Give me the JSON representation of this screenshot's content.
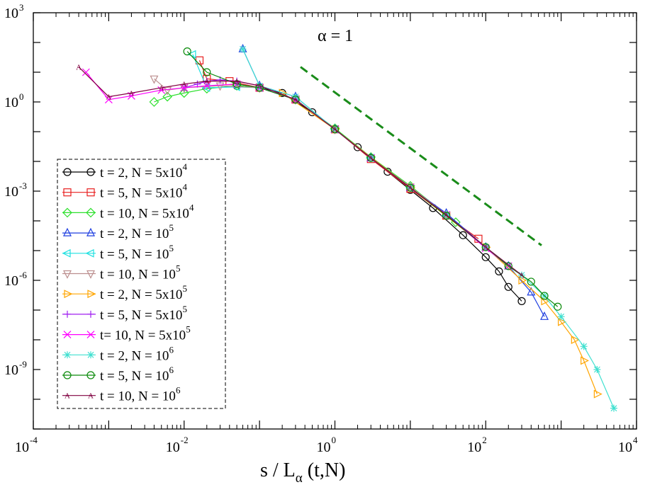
{
  "chart_data": {
    "type": "scatter",
    "scale": "log-log",
    "xlabel": "s / L_α (t,N)",
    "xlabel_main": "s / L",
    "xlabel_sub": "α",
    "xlabel_tail": " (t,N)",
    "ylabel": "",
    "annotation": "α = 1",
    "xlim": [
      0.0001,
      10000
    ],
    "ylim": [
      1e-11,
      1000
    ],
    "x_ticks": [
      {
        "base": "10",
        "exp": "-4",
        "value": 0.0001
      },
      {
        "base": "10",
        "exp": "-2",
        "value": 0.01
      },
      {
        "base": "10",
        "exp": "0",
        "value": 1
      },
      {
        "base": "10",
        "exp": "2",
        "value": 100
      },
      {
        "base": "10",
        "exp": "4",
        "value": 10000
      }
    ],
    "y_ticks": [
      {
        "base": "10",
        "exp": "3",
        "value": 1000
      },
      {
        "base": "10",
        "exp": "0",
        "value": 1
      },
      {
        "base": "10",
        "exp": "-3",
        "value": 0.001
      },
      {
        "base": "10",
        "exp": "-6",
        "value": 1e-06
      },
      {
        "base": "10",
        "exp": "-9",
        "value": 1e-09
      }
    ],
    "reference_line": {
      "label": "power-law guide",
      "color": "#1a8c1a",
      "x": [
        0.35,
        550
      ],
      "y": [
        15,
        1.5e-05
      ]
    },
    "legend_position": "lower-left",
    "series": [
      {
        "name": "t = 2,  N = 5x10^4",
        "text": "t = 2,  N = 5x10",
        "sup": "4",
        "color": "#000000",
        "marker": "circle",
        "x": [
          0.05,
          0.1,
          0.2,
          0.5,
          1,
          2,
          5,
          10,
          20,
          50,
          100,
          150,
          200,
          300
        ],
        "y": [
          3.5,
          3,
          2,
          0.45,
          0.12,
          0.03,
          0.0045,
          0.0011,
          0.00027,
          3.3e-05,
          6e-06,
          2e-06,
          6e-07,
          2e-07
        ]
      },
      {
        "name": "t = 5,  N = 5x10^4",
        "text": "t = 5,  N = 5x10",
        "sup": "4",
        "color": "#e81f1f",
        "marker": "square",
        "x": [
          0.016,
          0.02,
          0.04,
          0.1,
          0.3,
          1,
          3,
          10,
          30,
          80
        ],
        "y": [
          25,
          6,
          5,
          3,
          1.2,
          0.12,
          0.012,
          0.0012,
          0.00015,
          2.5e-05
        ]
      },
      {
        "name": "t = 10, N = 5x10^4",
        "text": "t = 10, N = 5x10",
        "sup": "4",
        "color": "#2ee02e",
        "marker": "diamond",
        "x": [
          0.004,
          0.006,
          0.01,
          0.02,
          0.05,
          0.1,
          0.3,
          1,
          3,
          10,
          40
        ],
        "y": [
          1,
          1.5,
          2,
          2.8,
          3.5,
          3,
          1.2,
          0.13,
          0.014,
          0.0015,
          9e-05
        ]
      },
      {
        "name": "t = 2,  N = 10^5",
        "text": "t = 2,  N = 10",
        "sup": "5",
        "color": "#1f3fe0",
        "marker": "triangle-up",
        "x": [
          0.06,
          0.1,
          0.3,
          1,
          3,
          10,
          30,
          100,
          200,
          400,
          600
        ],
        "y": [
          60,
          3.5,
          1.5,
          0.12,
          0.013,
          0.0013,
          0.00018,
          1.3e-05,
          3e-06,
          4e-07,
          6e-08
        ]
      },
      {
        "name": "t = 5,  N = 10^5",
        "text": "t = 5,  N = 10",
        "sup": "5",
        "color": "#1fe0e0",
        "marker": "triangle-left",
        "x": [
          0.013,
          0.02,
          0.05,
          0.1,
          0.3,
          1,
          3,
          10,
          30
        ],
        "y": [
          40,
          3,
          3.2,
          3,
          1.2,
          0.12,
          0.013,
          0.0013,
          0.00015
        ]
      },
      {
        "name": "t = 10, N = 10^5",
        "text": "t = 10, N = 10",
        "sup": "5",
        "color": "#bc8f8f",
        "marker": "triangle-down",
        "x": [
          0.004,
          0.006,
          0.01,
          0.03,
          0.1,
          0.3,
          1,
          3,
          10,
          30
        ],
        "y": [
          6,
          2.5,
          3,
          3.5,
          3,
          1.2,
          0.12,
          0.013,
          0.0014,
          0.00016
        ]
      },
      {
        "name": "t = 2,  N = 5x10^5",
        "text": "t = 2,  N = 5x10",
        "sup": "5",
        "color": "#ffa500",
        "marker": "triangle-right",
        "x": [
          0.2,
          1,
          10,
          100,
          300,
          600,
          1000,
          1500,
          2000,
          3000
        ],
        "y": [
          2,
          0.12,
          0.0013,
          1.3e-05,
          1e-06,
          2e-07,
          4e-08,
          1e-08,
          2e-09,
          1.5e-10
        ]
      },
      {
        "name": "t = 5,  N = 5x10^5",
        "text": "t = 5,  N = 5x10",
        "sup": "5",
        "color": "#a020f0",
        "marker": "plus",
        "x": [
          0.01,
          0.015,
          0.02,
          0.03,
          0.05,
          0.1,
          0.3,
          1,
          3,
          10
        ],
        "y": [
          3,
          4,
          5,
          5.5,
          5,
          3.5,
          1.2,
          0.12,
          0.013,
          0.0013
        ]
      },
      {
        "name": "t= 10, N = 5x10^5",
        "text": "t= 10, N = 5x10",
        "sup": "5",
        "color": "#ff00ff",
        "marker": "cross",
        "x": [
          0.0005,
          0.001,
          0.002,
          0.005,
          0.01,
          0.02,
          0.05,
          0.1,
          0.3,
          1,
          3,
          10,
          30,
          100,
          200
        ],
        "y": [
          10,
          1.2,
          1.6,
          2.5,
          3,
          3.5,
          4,
          3,
          1.2,
          0.12,
          0.013,
          0.0013,
          0.00016,
          1.2e-05,
          3e-06
        ]
      },
      {
        "name": "t = 2,  N = 10^6",
        "text": "t = 2,  N = 10",
        "sup": "6",
        "color": "#40e0d0",
        "marker": "star",
        "x": [
          0.06,
          0.1,
          0.3,
          1,
          3,
          10,
          30,
          100,
          300,
          600,
          1000,
          2000,
          3000,
          5000
        ],
        "y": [
          60,
          3.5,
          1.5,
          0.12,
          0.013,
          0.0013,
          0.00016,
          1.3e-05,
          1.5e-06,
          3e-07,
          6e-08,
          6e-09,
          1e-09,
          5e-11
        ]
      },
      {
        "name": "t = 5,  N = 10^6",
        "text": "t = 5,  N = 10",
        "sup": "6",
        "color": "#0a8a0a",
        "marker": "circle",
        "x": [
          0.011,
          0.02,
          0.05,
          0.1,
          0.3,
          1,
          3,
          10,
          30,
          100,
          200,
          400,
          600,
          900
        ],
        "y": [
          50,
          10,
          4,
          3,
          1.2,
          0.12,
          0.013,
          0.0013,
          0.00015,
          1.3e-05,
          3e-06,
          9e-07,
          3e-07,
          1.3e-07
        ]
      },
      {
        "name": "t = 10, N = 10^6",
        "text": "t = 10, N = 10",
        "sup": "6",
        "color": "#800040",
        "marker": "A",
        "x": [
          0.0004,
          0.001,
          0.002,
          0.005,
          0.01,
          0.02,
          0.05,
          0.1,
          0.3,
          1,
          3,
          10,
          30,
          100,
          300
        ],
        "y": [
          15,
          1.5,
          2,
          3,
          4,
          5,
          5,
          3.5,
          1.2,
          0.12,
          0.013,
          0.0013,
          0.00016,
          1.3e-05,
          1.5e-06
        ]
      }
    ]
  }
}
